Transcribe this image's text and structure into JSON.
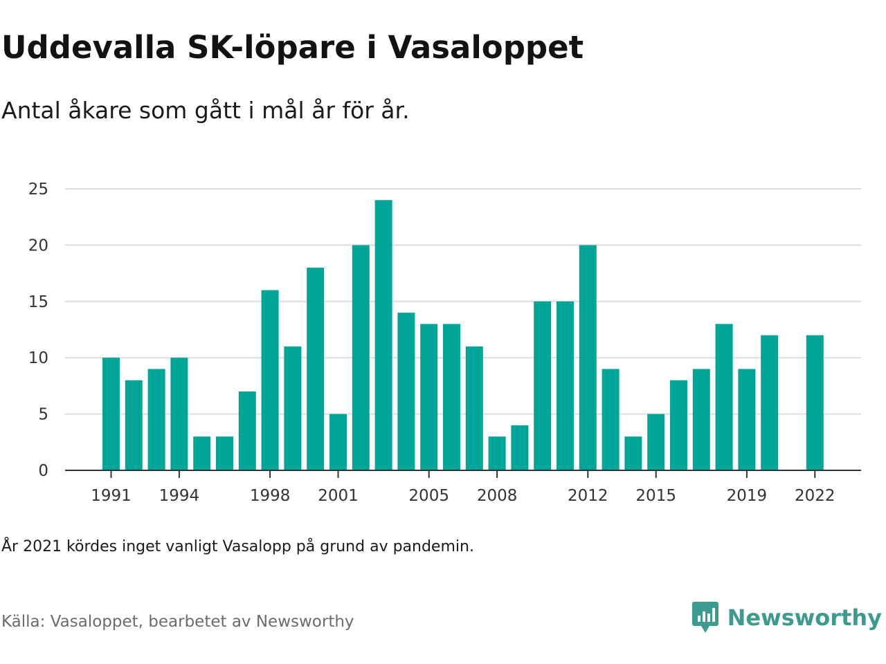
{
  "header": {
    "title": "Uddevalla SK-löpare i Vasaloppet",
    "subtitle": "Antal åkare som gått i mål år för år."
  },
  "footer": {
    "note": "År 2021 kördes inget vanligt Vasalopp på grund av pandemin.",
    "source": "Källa: Vasaloppet, bearbetet av Newsworthy"
  },
  "brand": {
    "name": "Newsworthy",
    "icon": "newsworthy-logo-icon",
    "color": "#3d9a8f"
  },
  "colors": {
    "bar": "#00a599",
    "grid": "#dcdcdc",
    "axis": "#333333"
  },
  "chart_data": {
    "type": "bar",
    "title": "Uddevalla SK-löpare i Vasaloppet",
    "subtitle": "Antal åkare som gått i mål år för år.",
    "xlabel": "",
    "ylabel": "",
    "ylim": [
      0,
      25
    ],
    "yticks": [
      0,
      5,
      10,
      15,
      20,
      25
    ],
    "grid": true,
    "x": [
      1991,
      1992,
      1993,
      1994,
      1995,
      1996,
      1997,
      1998,
      1999,
      2000,
      2001,
      2002,
      2003,
      2004,
      2005,
      2006,
      2007,
      2008,
      2009,
      2010,
      2011,
      2012,
      2013,
      2014,
      2015,
      2016,
      2017,
      2018,
      2019,
      2020,
      2021,
      2022
    ],
    "values": [
      10,
      8,
      9,
      10,
      3,
      3,
      7,
      16,
      11,
      18,
      5,
      20,
      24,
      14,
      13,
      13,
      11,
      3,
      4,
      15,
      15,
      20,
      9,
      3,
      5,
      8,
      9,
      13,
      9,
      12,
      null,
      12
    ],
    "xtick_labels": [
      "1991",
      "1994",
      "1998",
      "2001",
      "2005",
      "2008",
      "2012",
      "2015",
      "2019",
      "2022"
    ]
  }
}
